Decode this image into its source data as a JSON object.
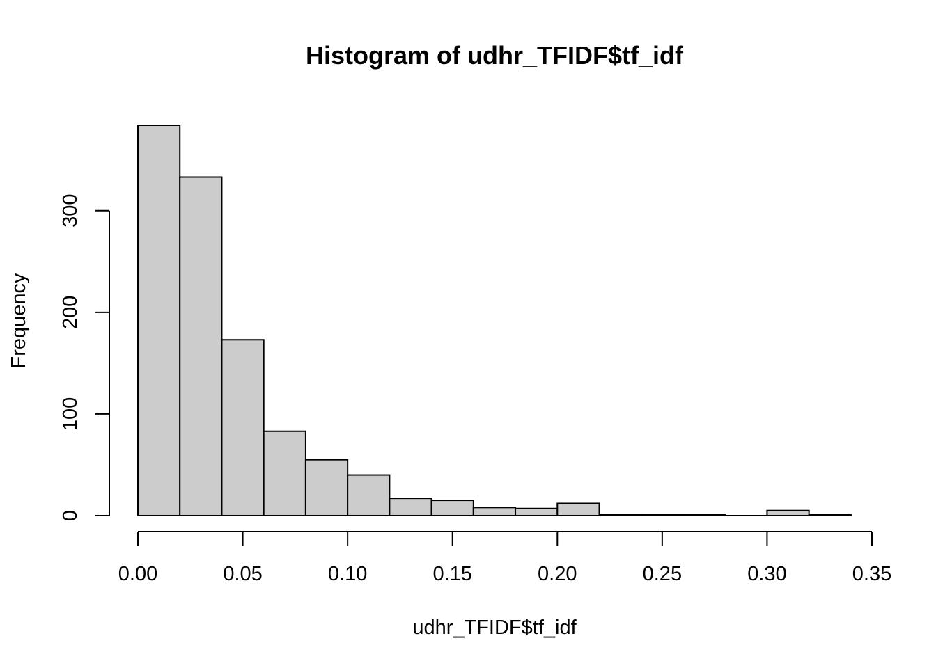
{
  "chart_data": {
    "type": "bar",
    "title": "Histogram of udhr_TFIDF$tf_idf",
    "xlabel": "udhr_TFIDF$tf_idf",
    "ylabel": "Frequency",
    "bin_edges": [
      0.0,
      0.02,
      0.04,
      0.06,
      0.08,
      0.1,
      0.12,
      0.14,
      0.16,
      0.18,
      0.2,
      0.22,
      0.24,
      0.26,
      0.28,
      0.3,
      0.32,
      0.34
    ],
    "values": [
      384,
      333,
      173,
      83,
      55,
      40,
      17,
      15,
      8,
      7,
      12,
      1,
      1,
      1,
      0,
      5,
      1
    ],
    "xlim": [
      0.0,
      0.35
    ],
    "ylim": [
      0,
      384
    ],
    "x_ticks": [
      0.0,
      0.05,
      0.1,
      0.15,
      0.2,
      0.25,
      0.3,
      0.35
    ],
    "x_tick_labels": [
      "0.00",
      "0.05",
      "0.10",
      "0.15",
      "0.20",
      "0.25",
      "0.30",
      "0.35"
    ],
    "y_ticks": [
      0,
      100,
      200,
      300
    ],
    "y_tick_labels": [
      "0",
      "100",
      "200",
      "300"
    ],
    "bar_fill": "#cccccc",
    "bar_stroke": "#000000",
    "grid": false,
    "legend": "none"
  }
}
